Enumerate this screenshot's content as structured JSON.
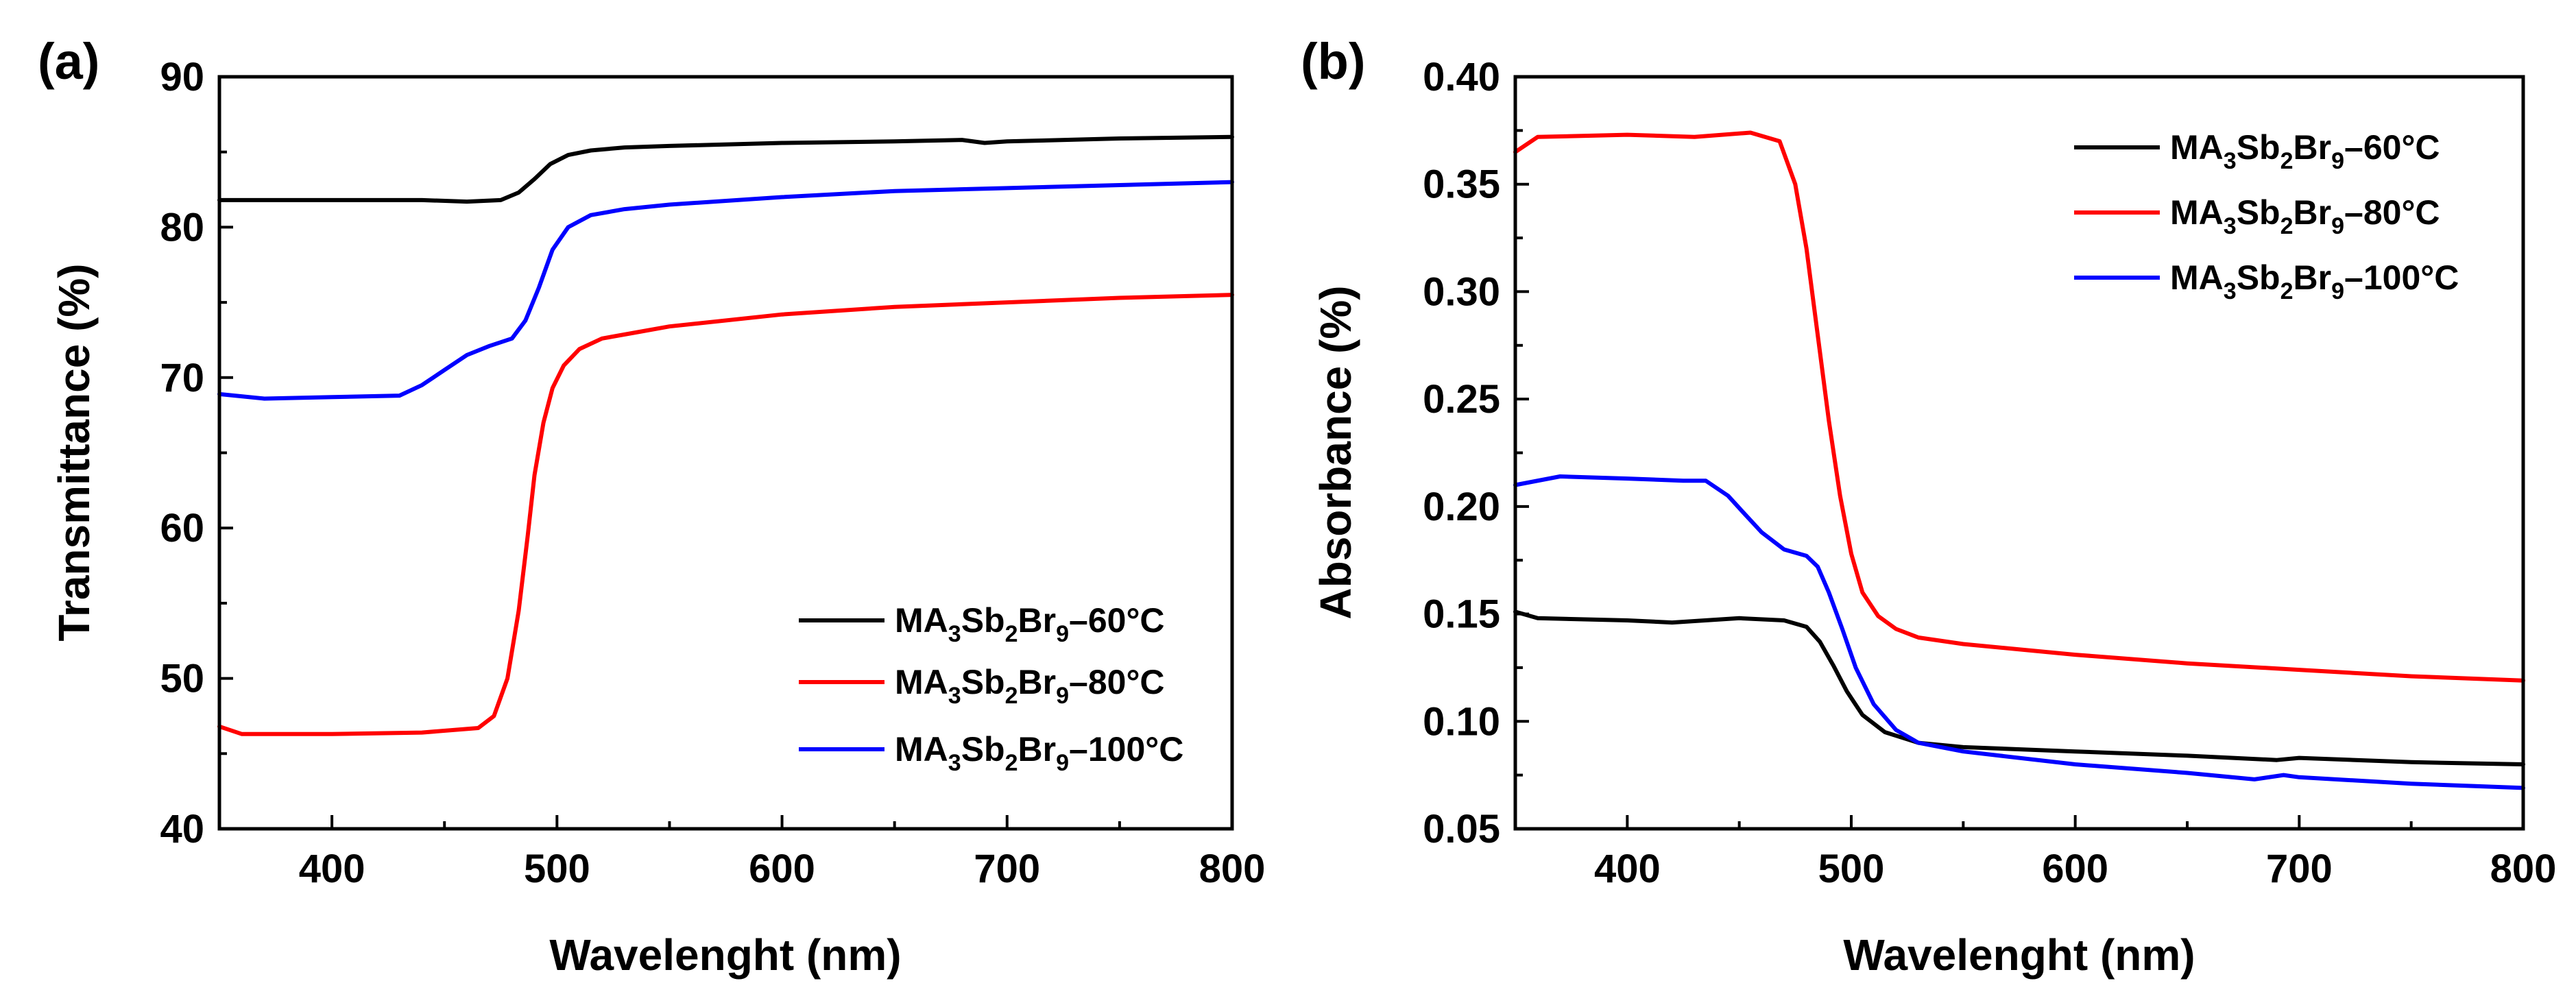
{
  "chart_data": [
    {
      "panel_label": "(a)",
      "type": "line",
      "xlabel": "Wavelenght (nm)",
      "ylabel": "Transmittance (%)",
      "xlim": [
        350,
        800
      ],
      "ylim": [
        40,
        90
      ],
      "xticks": [
        400,
        500,
        600,
        700,
        800
      ],
      "xtick_labels": [
        "400",
        "500",
        "600",
        "700",
        "800"
      ],
      "yticks": [
        40,
        50,
        60,
        70,
        80,
        90
      ],
      "ytick_labels": [
        "40",
        "50",
        "60",
        "70",
        "80",
        "90"
      ],
      "legend_position": "lower-right",
      "series": [
        {
          "name": "MA3Sb2Br9-60°C",
          "legend": {
            "prefix": "MA",
            "sub1": "3",
            "mid": "Sb",
            "sub2": "2",
            "mid2": "Br",
            "sub3": "9",
            "suffix": "–60°C"
          },
          "color": "#000000",
          "x": [
            350,
            400,
            440,
            460,
            475,
            483,
            490,
            497,
            505,
            515,
            530,
            550,
            600,
            650,
            680,
            690,
            700,
            750,
            800
          ],
          "y": [
            81.8,
            81.8,
            81.8,
            81.7,
            81.8,
            82.3,
            83.2,
            84.2,
            84.8,
            85.1,
            85.3,
            85.4,
            85.6,
            85.7,
            85.8,
            85.6,
            85.7,
            85.9,
            86.0
          ]
        },
        {
          "name": "MA3Sb2Br9-80°C",
          "legend": {
            "prefix": "MA",
            "sub1": "3",
            "mid": "Sb",
            "sub2": "2",
            "mid2": "Br",
            "sub3": "9",
            "suffix": "–80°C"
          },
          "color": "#ff0000",
          "x": [
            350,
            360,
            400,
            440,
            465,
            472,
            478,
            483,
            487,
            490,
            494,
            498,
            503,
            510,
            520,
            535,
            550,
            600,
            650,
            700,
            750,
            800
          ],
          "y": [
            46.8,
            46.3,
            46.3,
            46.4,
            46.7,
            47.5,
            50.0,
            54.5,
            59.5,
            63.5,
            67.0,
            69.3,
            70.8,
            71.9,
            72.6,
            73.0,
            73.4,
            74.2,
            74.7,
            75.0,
            75.3,
            75.5
          ]
        },
        {
          "name": "MA3Sb2Br9-100°C",
          "legend": {
            "prefix": "MA",
            "sub1": "3",
            "mid": "Sb",
            "sub2": "2",
            "mid2": "Br",
            "sub3": "9",
            "suffix": "–100°C"
          },
          "color": "#0000ff",
          "x": [
            350,
            370,
            400,
            430,
            440,
            450,
            460,
            470,
            480,
            486,
            492,
            498,
            505,
            515,
            530,
            550,
            600,
            650,
            700,
            750,
            800
          ],
          "y": [
            68.9,
            68.6,
            68.7,
            68.8,
            69.5,
            70.5,
            71.5,
            72.1,
            72.6,
            73.8,
            76.0,
            78.5,
            80.0,
            80.8,
            81.2,
            81.5,
            82.0,
            82.4,
            82.6,
            82.8,
            83.0
          ]
        }
      ]
    },
    {
      "panel_label": "(b)",
      "type": "line",
      "xlabel": "Wavelenght (nm)",
      "ylabel": "Absorbance (%)",
      "xlim": [
        350,
        800
      ],
      "ylim": [
        0.05,
        0.4
      ],
      "xticks": [
        400,
        500,
        600,
        700,
        800
      ],
      "xtick_labels": [
        "400",
        "500",
        "600",
        "700",
        "800"
      ],
      "yticks": [
        0.05,
        0.1,
        0.15,
        0.2,
        0.25,
        0.3,
        0.35,
        0.4
      ],
      "ytick_labels": [
        "0.05",
        "0.10",
        "0.15",
        "0.20",
        "0.25",
        "0.30",
        "0.35",
        "0.40"
      ],
      "legend_position": "top-right",
      "series": [
        {
          "name": "MA3Sb2Br9-60°C",
          "legend": {
            "prefix": "MA",
            "sub1": "3",
            "mid": "Sb",
            "sub2": "2",
            "mid2": "Br",
            "sub3": "9",
            "suffix": "–60°C"
          },
          "color": "#000000",
          "x": [
            350,
            360,
            400,
            420,
            450,
            470,
            480,
            486,
            492,
            498,
            505,
            515,
            530,
            550,
            600,
            650,
            690,
            700,
            750,
            800
          ],
          "y": [
            0.151,
            0.148,
            0.147,
            0.146,
            0.148,
            0.147,
            0.144,
            0.137,
            0.126,
            0.114,
            0.103,
            0.095,
            0.09,
            0.088,
            0.086,
            0.084,
            0.082,
            0.083,
            0.081,
            0.08
          ]
        },
        {
          "name": "MA3Sb2Br9-80°C",
          "legend": {
            "prefix": "MA",
            "sub1": "3",
            "mid": "Sb",
            "sub2": "2",
            "mid2": "Br",
            "sub3": "9",
            "suffix": "–80°C"
          },
          "color": "#ff0000",
          "x": [
            350,
            360,
            400,
            430,
            455,
            468,
            475,
            480,
            485,
            490,
            495,
            500,
            505,
            512,
            520,
            530,
            550,
            600,
            650,
            700,
            750,
            800
          ],
          "y": [
            0.365,
            0.372,
            0.373,
            0.372,
            0.374,
            0.37,
            0.35,
            0.32,
            0.28,
            0.24,
            0.205,
            0.178,
            0.16,
            0.149,
            0.143,
            0.139,
            0.136,
            0.131,
            0.127,
            0.124,
            0.121,
            0.119
          ]
        },
        {
          "name": "MA3Sb2Br9-100°C",
          "legend": {
            "prefix": "MA",
            "sub1": "3",
            "mid": "Sb",
            "sub2": "2",
            "mid2": "Br",
            "sub3": "9",
            "suffix": "–100°C"
          },
          "color": "#0000ff",
          "x": [
            350,
            370,
            400,
            425,
            435,
            445,
            452,
            460,
            470,
            480,
            485,
            490,
            496,
            502,
            510,
            520,
            530,
            550,
            600,
            650,
            680,
            693,
            700,
            750,
            800
          ],
          "y": [
            0.21,
            0.214,
            0.213,
            0.212,
            0.212,
            0.205,
            0.197,
            0.188,
            0.18,
            0.177,
            0.172,
            0.16,
            0.143,
            0.125,
            0.108,
            0.096,
            0.09,
            0.086,
            0.08,
            0.076,
            0.073,
            0.075,
            0.074,
            0.071,
            0.069
          ]
        }
      ]
    }
  ]
}
